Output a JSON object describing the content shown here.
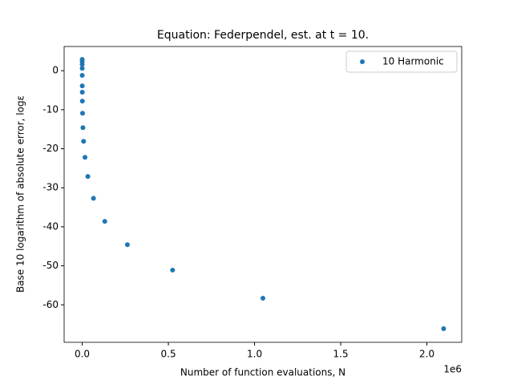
{
  "chart_data": {
    "type": "scatter",
    "title": "Equation: Federpendel, est. at t = 10.",
    "xlabel": "Number of function evaluations, N",
    "ylabel": "Base 10 logarithm of absolute error, logε",
    "x_offset_label": "1e6",
    "series": [
      {
        "name": "10 Harmonic",
        "color": "#1f77b4",
        "x": [
          8,
          16,
          32,
          64,
          128,
          256,
          512,
          1024,
          2048,
          4096,
          8192,
          16384,
          32768,
          65536,
          131072,
          262144,
          524288,
          1048576,
          2097152
        ],
        "values": [
          2.9,
          2.3,
          1.6,
          0.6,
          -1.2,
          -3.9,
          -5.5,
          -7.8,
          -10.9,
          -14.6,
          -18.1,
          -22.2,
          -27.1,
          -32.7,
          -38.6,
          -44.6,
          -51.1,
          -58.3,
          -66.1
        ]
      }
    ],
    "xlim": [
      -104858,
      2202010
    ],
    "ylim": [
      -69.6,
      6.2
    ],
    "xticks": [
      {
        "value": 0,
        "label": "0.0"
      },
      {
        "value": 500000,
        "label": "0.5"
      },
      {
        "value": 1000000,
        "label": "1.0"
      },
      {
        "value": 1500000,
        "label": "1.5"
      },
      {
        "value": 2000000,
        "label": "2.0"
      }
    ],
    "yticks": [
      -60,
      -50,
      -40,
      -30,
      -20,
      -10,
      0
    ],
    "legend": "upper right"
  }
}
